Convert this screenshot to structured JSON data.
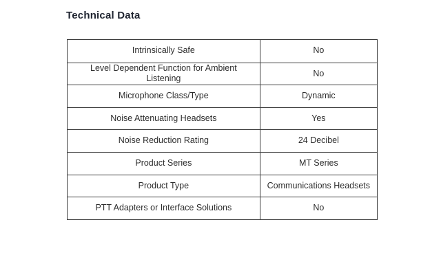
{
  "page": {
    "title": "Technical Data"
  },
  "table": {
    "rows": [
      {
        "label": "Intrinsically Safe",
        "value": "No"
      },
      {
        "label": "Level Dependent Function for Ambient Listening",
        "value": "No"
      },
      {
        "label": "Microphone Class/Type",
        "value": "Dynamic"
      },
      {
        "label": "Noise Attenuating Headsets",
        "value": "Yes"
      },
      {
        "label": "Noise Reduction Rating",
        "value": "24 Decibel"
      },
      {
        "label": "Product Series",
        "value": "MT Series"
      },
      {
        "label": "Product Type",
        "value": "Communications Headsets"
      },
      {
        "label": "PTT Adapters or Interface Solutions",
        "value": "No"
      }
    ]
  },
  "colors": {
    "background": "#ffffff",
    "border": "#3d3d3d",
    "heading_text": "#1f2430",
    "body_text": "#2d2d2d"
  }
}
